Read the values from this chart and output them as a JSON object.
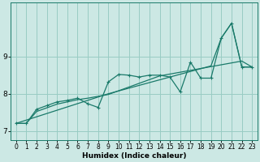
{
  "title": "",
  "xlabel": "Humidex (Indice chaleur)",
  "background_color": "#cce8e4",
  "grid_color": "#99ccc4",
  "line_color": "#1a7a6a",
  "xlim": [
    -0.5,
    23.5
  ],
  "ylim": [
    6.75,
    10.45
  ],
  "yticks": [
    7,
    8,
    9
  ],
  "xticks": [
    0,
    1,
    2,
    3,
    4,
    5,
    6,
    7,
    8,
    9,
    10,
    11,
    12,
    13,
    14,
    15,
    16,
    17,
    18,
    19,
    20,
    21,
    22,
    23
  ],
  "series_smooth_x": [
    0,
    1,
    2,
    3,
    4,
    5,
    6,
    7,
    8,
    9,
    10,
    11,
    12,
    13,
    14,
    15,
    16,
    17,
    18,
    19,
    20,
    21,
    22,
    23
  ],
  "series_smooth_y": [
    7.2,
    7.2,
    7.52,
    7.62,
    7.72,
    7.78,
    7.84,
    7.88,
    7.93,
    7.98,
    8.08,
    8.18,
    8.28,
    8.38,
    8.48,
    8.53,
    8.58,
    8.63,
    8.68,
    8.73,
    8.78,
    8.83,
    8.88,
    8.72
  ],
  "series_upper_x": [
    0,
    9,
    19,
    20,
    21,
    22,
    23
  ],
  "series_upper_y": [
    7.2,
    8.0,
    8.75,
    9.5,
    9.9,
    8.72,
    8.72
  ],
  "series_marked_x": [
    0,
    1,
    2,
    3,
    4,
    5,
    6,
    7,
    8,
    9,
    10,
    11,
    12,
    13,
    14,
    15,
    16,
    17,
    18,
    19,
    20,
    21,
    22,
    23
  ],
  "series_marked_y": [
    7.2,
    7.2,
    7.58,
    7.68,
    7.78,
    7.82,
    7.88,
    7.73,
    7.63,
    8.32,
    8.52,
    8.5,
    8.45,
    8.5,
    8.5,
    8.45,
    8.05,
    8.85,
    8.42,
    8.42,
    9.5,
    9.9,
    8.72,
    8.72
  ]
}
